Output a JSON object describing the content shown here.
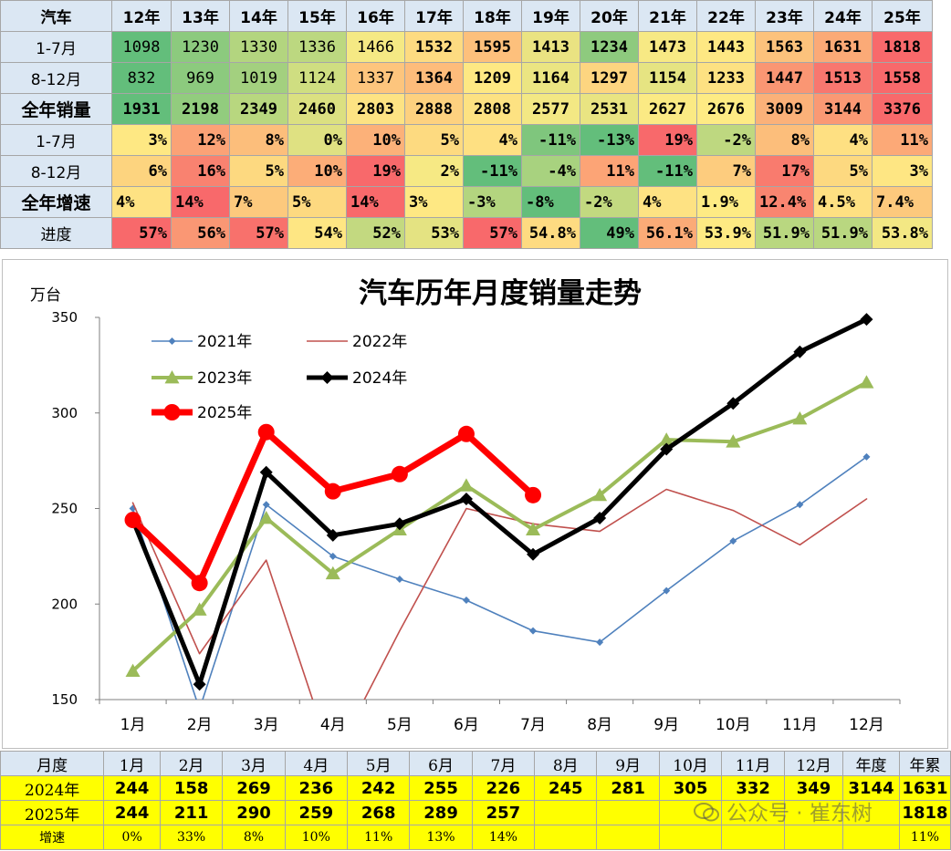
{
  "top_table": {
    "corner": "汽车",
    "years": [
      "12年",
      "13年",
      "14年",
      "15年",
      "16年",
      "17年",
      "18年",
      "19年",
      "20年",
      "21年",
      "22年",
      "23年",
      "24年",
      "25年"
    ],
    "rows": [
      {
        "label": "1-7月",
        "big": false,
        "align": "center",
        "bold": false,
        "cells": [
          "1098",
          "1230",
          "1330",
          "1336",
          "1466",
          "1532",
          "1595",
          "1413",
          "1234",
          "1473",
          "1443",
          "1563",
          "1631",
          "1818"
        ],
        "colors": [
          "#63be7b",
          "#8cca7e",
          "#b3d57f",
          "#bcd880",
          "#f5e984",
          "#fddb81",
          "#fdc07c",
          "#eae382",
          "#8eca7e",
          "#f7e984",
          "#fee883",
          "#fcc27c",
          "#fbaa77",
          "#f8696b"
        ],
        "boldcells": [
          false,
          false,
          false,
          false,
          false,
          true,
          true,
          true,
          true,
          true,
          true,
          true,
          true,
          true
        ]
      },
      {
        "label": "8-12月",
        "big": false,
        "align": "center",
        "bold": false,
        "cells": [
          "832",
          "969",
          "1019",
          "1124",
          "1337",
          "1364",
          "1209",
          "1164",
          "1297",
          "1154",
          "1233",
          "1447",
          "1513",
          "1558"
        ],
        "colors": [
          "#63be7b",
          "#8cca7e",
          "#a3d07f",
          "#cfde81",
          "#fdc57d",
          "#fdbc7b",
          "#fee883",
          "#ebe582",
          "#fdd580",
          "#e6e482",
          "#fde182",
          "#fa9673",
          "#f8776f",
          "#f8696b"
        ],
        "boldcells": [
          false,
          false,
          false,
          false,
          false,
          true,
          true,
          true,
          true,
          true,
          true,
          true,
          true,
          true
        ]
      },
      {
        "label": "全年销量",
        "big": true,
        "align": "center",
        "bold": true,
        "cells": [
          "1931",
          "2198",
          "2349",
          "2460",
          "2803",
          "2888",
          "2808",
          "2577",
          "2531",
          "2627",
          "2676",
          "3009",
          "3144",
          "3376"
        ],
        "colors": [
          "#63be7b",
          "#92cc7e",
          "#b8d77f",
          "#dbe081",
          "#fde383",
          "#fdd17f",
          "#fde282",
          "#f3e884",
          "#e9e482",
          "#fbea84",
          "#feeb84",
          "#fbb179",
          "#fa9974",
          "#f8696b"
        ],
        "boldcells": [
          true,
          true,
          true,
          true,
          true,
          true,
          true,
          true,
          true,
          true,
          true,
          true,
          true,
          true
        ]
      },
      {
        "label": "1-7月",
        "big": false,
        "align": "right",
        "bold": true,
        "cells": [
          "3%",
          "12%",
          "8%",
          "0%",
          "10%",
          "5%",
          "4%",
          "-11%",
          "-13%",
          "19%",
          "-2%",
          "8%",
          "4%",
          "11%"
        ],
        "colors": [
          "#fee883",
          "#fba276",
          "#fcbe7b",
          "#dfe182",
          "#fcb179",
          "#fdda80",
          "#fee082",
          "#7fc67d",
          "#63be7b",
          "#f8696b",
          "#bed880",
          "#fcbe7b",
          "#fee082",
          "#fca977"
        ],
        "boldcells": [
          true,
          true,
          true,
          true,
          true,
          true,
          true,
          true,
          true,
          true,
          true,
          true,
          true,
          true
        ]
      },
      {
        "label": "8-12月",
        "big": false,
        "align": "right",
        "bold": true,
        "cells": [
          "6%",
          "16%",
          "5%",
          "10%",
          "19%",
          "2%",
          "-11%",
          "-4%",
          "11%",
          "-11%",
          "7%",
          "17%",
          "5%",
          "3%"
        ],
        "colors": [
          "#fdd47f",
          "#f98270",
          "#fdd980",
          "#fcad78",
          "#f8696b",
          "#f6e984",
          "#63be7b",
          "#a8d27f",
          "#fca476",
          "#63be7b",
          "#fdcc7e",
          "#f97b6e",
          "#fdd980",
          "#fee683"
        ],
        "boldcells": [
          true,
          true,
          true,
          true,
          true,
          true,
          true,
          true,
          true,
          true,
          true,
          true,
          true,
          true
        ]
      },
      {
        "label": "全年增速",
        "big": true,
        "align": "left",
        "bold": true,
        "cells": [
          "4%",
          "14%",
          "7%",
          "5%",
          "14%",
          "3%",
          "-3%",
          "-8%",
          "-2%",
          "4%",
          "1.9%",
          "12.4%",
          "4.5%",
          "7.4%"
        ],
        "colors": [
          "#fee283",
          "#f8696b",
          "#fdc97d",
          "#fdd980",
          "#f8696b",
          "#fee883",
          "#b3d57f",
          "#63be7b",
          "#c2d980",
          "#fee283",
          "#feeb84",
          "#f98570",
          "#fee082",
          "#fdc97d"
        ],
        "boldcells": [
          true,
          true,
          true,
          true,
          true,
          true,
          true,
          true,
          true,
          true,
          true,
          true,
          true,
          true
        ]
      },
      {
        "label": "进度",
        "big": false,
        "align": "right",
        "bold": true,
        "cells": [
          "57%",
          "56%",
          "57%",
          "54%",
          "52%",
          "53%",
          "57%",
          "54.8%",
          "49%",
          "56.1%",
          "53.9%",
          "51.9%",
          "51.9%",
          "53.8%"
        ],
        "colors": [
          "#f8696b",
          "#fa9774",
          "#f8716c",
          "#fee683",
          "#c3d980",
          "#e4e382",
          "#f8696b",
          "#fedb81",
          "#63be7b",
          "#fbab77",
          "#feea83",
          "#b9d780",
          "#b9d780",
          "#f3e884"
        ],
        "boldcells": [
          true,
          true,
          true,
          true,
          true,
          true,
          true,
          true,
          true,
          true,
          true,
          true,
          true,
          true
        ]
      }
    ]
  },
  "chart_data": {
    "type": "line",
    "title": "汽车历年月度销量走势",
    "ylabel": "万台",
    "xlabel": "",
    "categories": [
      "1月",
      "2月",
      "3月",
      "4月",
      "5月",
      "6月",
      "7月",
      "8月",
      "9月",
      "10月",
      "11月",
      "12月"
    ],
    "ylim": [
      150,
      350
    ],
    "yticks": [
      "150",
      "200",
      "250",
      "300",
      "350"
    ],
    "grid": false,
    "legend_position": "top-left",
    "series": [
      {
        "name": "2021年",
        "color": "#4f81bd",
        "marker": "diamond",
        "width": 1.6,
        "markersize": 4,
        "values": [
          250,
          145,
          252,
          225,
          213,
          202,
          186,
          180,
          207,
          233,
          252,
          277
        ]
      },
      {
        "name": "2022年",
        "color": "#c0504d",
        "marker": "none",
        "width": 1.6,
        "markersize": 0,
        "values": [
          253,
          174,
          223,
          118,
          186,
          250,
          242,
          238,
          260,
          249,
          231,
          255
        ]
      },
      {
        "name": "2023年",
        "color": "#9bbb59",
        "marker": "triangle",
        "width": 4,
        "markersize": 8,
        "values": [
          165,
          197,
          245,
          216,
          239,
          262,
          239,
          257,
          286,
          285,
          297,
          316
        ]
      },
      {
        "name": "2024年",
        "color": "#000000",
        "marker": "diamond",
        "width": 5,
        "markersize": 7,
        "values": [
          244,
          158,
          269,
          236,
          242,
          255,
          226,
          245,
          281,
          305,
          332,
          349
        ]
      },
      {
        "name": "2025年",
        "color": "#ff0000",
        "marker": "circle",
        "width": 7,
        "markersize": 9,
        "values": [
          244,
          211,
          290,
          259,
          268,
          289,
          257,
          null,
          null,
          null,
          null,
          null
        ]
      }
    ]
  },
  "bottom_table": {
    "header": [
      "月度",
      "1月",
      "2月",
      "3月",
      "4月",
      "5月",
      "6月",
      "7月",
      "8月",
      "9月",
      "10月",
      "11月",
      "12月",
      "年度",
      "年累"
    ],
    "rows": [
      {
        "cls": "b-yellow",
        "cells": [
          "2024年",
          "244",
          "158",
          "269",
          "236",
          "242",
          "255",
          "226",
          "245",
          "281",
          "305",
          "332",
          "349",
          "3144",
          "1631"
        ]
      },
      {
        "cls": "b-yellow",
        "cells": [
          "2025年",
          "244",
          "211",
          "290",
          "259",
          "268",
          "289",
          "257",
          "",
          "",
          "",
          "",
          "",
          "",
          "1818"
        ]
      },
      {
        "cls": "b-growth",
        "cells": [
          "增速",
          "0%",
          "33%",
          "8%",
          "10%",
          "11%",
          "13%",
          "14%",
          "",
          "",
          "",
          "",
          "",
          "",
          "11%"
        ]
      }
    ]
  },
  "watermark": {
    "text": "公众号 · 崔东树",
    "icon": "wechat-icon"
  }
}
